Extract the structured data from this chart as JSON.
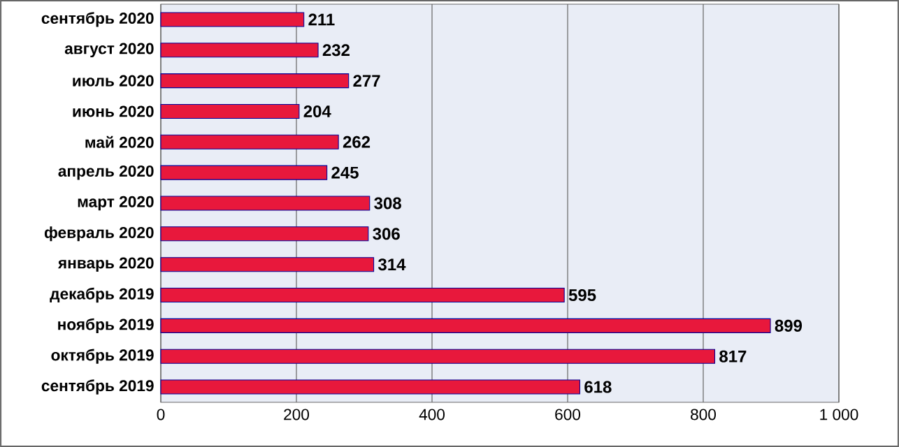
{
  "chart_data": {
    "type": "bar",
    "orientation": "horizontal",
    "categories": [
      "сентябрь 2020",
      "август 2020",
      "июль 2020",
      "июнь 2020",
      "май 2020",
      "апрель 2020",
      "март 2020",
      "февраль 2020",
      "январь 2020",
      "декабрь 2019",
      "ноябрь 2019",
      "октябрь 2019",
      "сентябрь 2019"
    ],
    "values": [
      211,
      232,
      277,
      204,
      262,
      245,
      308,
      306,
      314,
      595,
      899,
      817,
      618
    ],
    "color": "#e8183c",
    "xlim": [
      0,
      1000
    ],
    "xticks": [
      0,
      200,
      400,
      600,
      800,
      {
        "value": 1000,
        "label": "1 000"
      }
    ],
    "grid": "x",
    "data_labels": true
  }
}
